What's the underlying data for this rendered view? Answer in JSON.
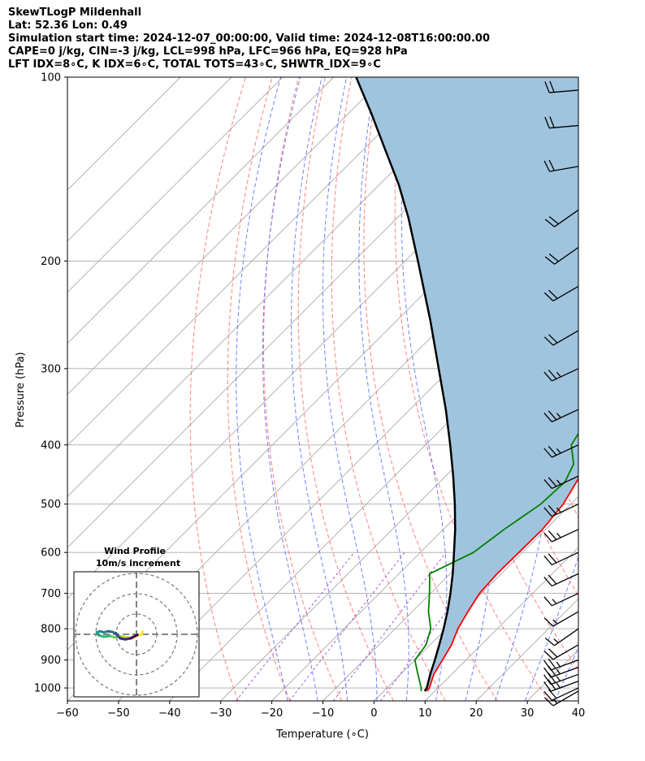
{
  "header": {
    "lines": [
      "SkewTLogP Mildenhall",
      "Lat: 52.36   Lon: 0.49",
      "Simulation start time: 2024-12-07_00:00:00, Valid time: 2024-12-08T16:00:00.00",
      "CAPE=0 j/kg, CIN=-3 j/kg, LCL=998 hPa, LFC=966 hPa, EQ=928 hPa",
      "LFT IDX=8∘C, K IDX=6∘C, TOTAL TOTS=43∘C, SHWTR_IDX=9∘C"
    ]
  },
  "chart_data": {
    "type": "skew-t",
    "xlabel": "Temperature (∘C)",
    "ylabel": "Pressure (hPa)",
    "xlim": [
      -60,
      40
    ],
    "ylim": [
      1050,
      100
    ],
    "log_y": true,
    "grid": true,
    "x_ticks": [
      "−60",
      "−50",
      "−40",
      "−30",
      "−20",
      "−10",
      "0",
      "10",
      "20",
      "30",
      "40"
    ],
    "y_ticks": [
      "100",
      "200",
      "300",
      "400",
      "500",
      "600",
      "700",
      "800",
      "900",
      "1000"
    ],
    "colors": {
      "temperature": "#ff0000",
      "dewpoint": "#008000",
      "parcel": "#000000",
      "cape_fill": "#a0c4de",
      "dry_adiabats": "#ff6a6a",
      "moist_adiabats": "#5a6aff",
      "mixing_ratio": "#9a4ad0",
      "isotherms": "#aaaaaa"
    },
    "temperature": {
      "p": [
        1012,
        1000,
        950,
        900,
        850,
        800,
        750,
        700,
        650,
        600,
        550,
        500,
        450,
        420,
        400,
        350,
        320,
        300,
        280,
        260,
        240,
        220,
        200,
        180,
        170,
        160,
        150,
        140,
        130,
        120,
        110,
        100
      ],
      "t": [
        8.5,
        8.3,
        6.5,
        5.4,
        4.2,
        2.3,
        0.9,
        -0.4,
        -0.8,
        -0.7,
        -0.6,
        -1.5,
        -3.7,
        -4.9,
        -5.8,
        -8.7,
        -10.8,
        -12.4,
        -14.3,
        -16.2,
        -18.7,
        -21.6,
        -24.5,
        -28.0,
        -29.6,
        -31.4,
        -34.0,
        -37.1,
        -40.8,
        -44.8,
        -48.2,
        -51.6
      ]
    },
    "dewpoint": {
      "p": [
        1012,
        1000,
        950,
        900,
        850,
        800,
        750,
        700,
        650,
        600,
        550,
        500,
        460,
        430,
        400,
        350,
        320,
        300,
        280,
        250,
        220,
        200,
        180,
        170,
        160,
        150,
        140,
        130,
        120,
        110,
        100
      ],
      "t": [
        7.3,
        6.7,
        3.4,
        0.0,
        -0.8,
        -3.0,
        -6.8,
        -10.2,
        -14.0,
        -9.6,
        -8.1,
        -5.9,
        -5.5,
        -7.3,
        -11.5,
        -14.1,
        -17.3,
        -19.5,
        -21.3,
        -24.2,
        -27.2,
        -32.5,
        -36.3,
        -38.0,
        -41.5,
        -44.3,
        -47.6,
        -51.8,
        -56.9,
        -62.7,
        -68.9
      ]
    },
    "parcel": {
      "p": [
        1012,
        1000,
        950,
        900,
        850,
        800,
        750,
        700,
        650,
        600,
        550,
        500,
        450,
        400,
        350,
        300,
        250,
        200,
        170,
        150,
        130,
        115,
        100
      ],
      "t": [
        8.0,
        7.8,
        5.8,
        3.9,
        1.8,
        -0.5,
        -3.1,
        -6.1,
        -9.5,
        -13.4,
        -17.7,
        -22.7,
        -28.5,
        -35.2,
        -43.0,
        -52.4,
        -63.5,
        -77.5,
        -87.8,
        -96.2,
        -106.5,
        -115.3,
        -125.6
      ]
    },
    "wind_barbs": [
      {
        "p": 1012,
        "speed_kt": 15,
        "dir_deg": 240
      },
      {
        "p": 1000,
        "speed_kt": 20,
        "dir_deg": 245
      },
      {
        "p": 975,
        "speed_kt": 25,
        "dir_deg": 250
      },
      {
        "p": 950,
        "speed_kt": 25,
        "dir_deg": 250
      },
      {
        "p": 925,
        "speed_kt": 25,
        "dir_deg": 250
      },
      {
        "p": 900,
        "speed_kt": 25,
        "dir_deg": 250
      },
      {
        "p": 850,
        "speed_kt": 20,
        "dir_deg": 240
      },
      {
        "p": 800,
        "speed_kt": 15,
        "dir_deg": 235
      },
      {
        "p": 750,
        "speed_kt": 15,
        "dir_deg": 240
      },
      {
        "p": 700,
        "speed_kt": 15,
        "dir_deg": 245
      },
      {
        "p": 650,
        "speed_kt": 20,
        "dir_deg": 245
      },
      {
        "p": 600,
        "speed_kt": 20,
        "dir_deg": 245
      },
      {
        "p": 550,
        "speed_kt": 25,
        "dir_deg": 245
      },
      {
        "p": 500,
        "speed_kt": 25,
        "dir_deg": 245
      },
      {
        "p": 450,
        "speed_kt": 25,
        "dir_deg": 245
      },
      {
        "p": 400,
        "speed_kt": 25,
        "dir_deg": 245
      },
      {
        "p": 350,
        "speed_kt": 25,
        "dir_deg": 245
      },
      {
        "p": 300,
        "speed_kt": 25,
        "dir_deg": 245
      },
      {
        "p": 260,
        "speed_kt": 20,
        "dir_deg": 240
      },
      {
        "p": 220,
        "speed_kt": 20,
        "dir_deg": 240
      },
      {
        "p": 190,
        "speed_kt": 20,
        "dir_deg": 235
      },
      {
        "p": 165,
        "speed_kt": 20,
        "dir_deg": 235
      },
      {
        "p": 140,
        "speed_kt": 20,
        "dir_deg": 260
      },
      {
        "p": 120,
        "speed_kt": 20,
        "dir_deg": 265
      },
      {
        "p": 105,
        "speed_kt": 20,
        "dir_deg": 265
      }
    ],
    "inset": {
      "title_line1": "Wind Profile",
      "title_line2": "10m/s increment",
      "ring_spacing_ms": 10,
      "hodograph": [
        {
          "u": 3.0,
          "v": 1.5
        },
        {
          "u": 2.5,
          "v": 0.0
        },
        {
          "u": 0.5,
          "v": -0.5
        },
        {
          "u": -2.0,
          "v": -2.0
        },
        {
          "u": -5.0,
          "v": -1.5
        },
        {
          "u": -8.0,
          "v": -1.0
        },
        {
          "u": -11.0,
          "v": -1.5
        },
        {
          "u": -13.0,
          "v": -0.8
        },
        {
          "u": -16.0,
          "v": -1.2
        },
        {
          "u": -18.5,
          "v": -0.5
        },
        {
          "u": -19.5,
          "v": 1.0
        },
        {
          "u": -18.0,
          "v": 1.5
        },
        {
          "u": -16.0,
          "v": 1.0
        },
        {
          "u": -14.0,
          "v": 1.5
        },
        {
          "u": -12.0,
          "v": 1.2
        },
        {
          "u": -10.0,
          "v": 0.5
        },
        {
          "u": -9.5,
          "v": -0.5
        },
        {
          "u": -8.0,
          "v": -2.0
        },
        {
          "u": -5.5,
          "v": -2.5
        },
        {
          "u": -3.0,
          "v": -2.0
        },
        {
          "u": -1.0,
          "v": -1.0
        },
        {
          "u": 0.5,
          "v": -0.3
        }
      ]
    }
  }
}
